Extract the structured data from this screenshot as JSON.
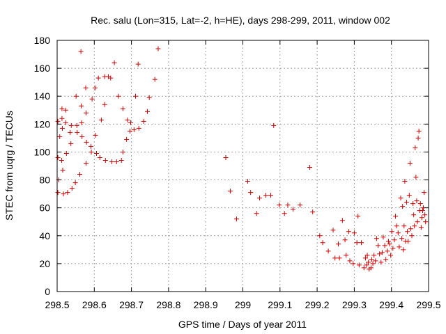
{
  "chart_data": {
    "type": "scatter",
    "title": "Rec. salu (Lon=315, Lat=-2, h=HE), days 298-299, 2011, window 002",
    "xlabel": "GPS time / Days of year 2011",
    "ylabel": "STEC from uqrg / TECUs",
    "xlim": [
      298.5,
      299.5
    ],
    "ylim": [
      0,
      180
    ],
    "xticks": [
      298.5,
      298.6,
      298.7,
      298.8,
      298.9,
      299,
      299.1,
      299.2,
      299.3,
      299.4,
      299.5
    ],
    "xtick_labels": [
      "298.5",
      "298.6",
      "298.7",
      "298.8",
      "298.9",
      "299",
      "299.1",
      "299.2",
      "299.3",
      "299.4",
      "299.5"
    ],
    "yticks": [
      0,
      20,
      40,
      60,
      80,
      100,
      120,
      140,
      160,
      180
    ],
    "ytick_labels": [
      "0",
      "20",
      "40",
      "60",
      "80",
      "100",
      "120",
      "140",
      "160",
      "180"
    ],
    "grid": true,
    "marker": "+",
    "color": "#cc0000",
    "points": [
      [
        298.502,
        122
      ],
      [
        298.502,
        96
      ],
      [
        298.502,
        71
      ],
      [
        298.504,
        80
      ],
      [
        298.507,
        111
      ],
      [
        298.512,
        94
      ],
      [
        298.513,
        131
      ],
      [
        298.513,
        124
      ],
      [
        298.514,
        117
      ],
      [
        298.515,
        87
      ],
      [
        298.517,
        70
      ],
      [
        298.523,
        130
      ],
      [
        298.523,
        121
      ],
      [
        298.525,
        99
      ],
      [
        298.528,
        71
      ],
      [
        298.535,
        114
      ],
      [
        298.537,
        106
      ],
      [
        298.538,
        119
      ],
      [
        298.54,
        74
      ],
      [
        298.549,
        78
      ],
      [
        298.551,
        140
      ],
      [
        298.553,
        119
      ],
      [
        298.554,
        114
      ],
      [
        298.561,
        84
      ],
      [
        298.564,
        172
      ],
      [
        298.565,
        133
      ],
      [
        298.566,
        121
      ],
      [
        298.567,
        111
      ],
      [
        298.577,
        146
      ],
      [
        298.578,
        92
      ],
      [
        298.578,
        128
      ],
      [
        298.579,
        107
      ],
      [
        298.591,
        104
      ],
      [
        298.592,
        100
      ],
      [
        298.594,
        138
      ],
      [
        298.602,
        146
      ],
      [
        298.603,
        112
      ],
      [
        298.606,
        99
      ],
      [
        298.611,
        153
      ],
      [
        298.615,
        96
      ],
      [
        298.619,
        123
      ],
      [
        298.628,
        134
      ],
      [
        298.628,
        154
      ],
      [
        298.63,
        94
      ],
      [
        298.638,
        154
      ],
      [
        298.644,
        153
      ],
      [
        298.647,
        93
      ],
      [
        298.654,
        164
      ],
      [
        298.66,
        93
      ],
      [
        298.665,
        140
      ],
      [
        298.673,
        94
      ],
      [
        298.677,
        100
      ],
      [
        298.677,
        131
      ],
      [
        298.687,
        109
      ],
      [
        298.689,
        123
      ],
      [
        298.696,
        115
      ],
      [
        298.698,
        121
      ],
      [
        298.707,
        116
      ],
      [
        298.711,
        140
      ],
      [
        298.718,
        163
      ],
      [
        298.72,
        117
      ],
      [
        298.733,
        122
      ],
      [
        298.743,
        129
      ],
      [
        298.748,
        139
      ],
      [
        298.763,
        152
      ],
      [
        298.772,
        174
      ],
      [
        298.954,
        96
      ],
      [
        298.966,
        72
      ],
      [
        298.983,
        52
      ],
      [
        299.013,
        79
      ],
      [
        299.021,
        71
      ],
      [
        299.037,
        56
      ],
      [
        299.045,
        67
      ],
      [
        299.062,
        69
      ],
      [
        299.075,
        69
      ],
      [
        299.083,
        119
      ],
      [
        299.098,
        62
      ],
      [
        299.112,
        56
      ],
      [
        299.121,
        62
      ],
      [
        299.135,
        59
      ],
      [
        299.154,
        62
      ],
      [
        299.18,
        89
      ],
      [
        299.188,
        57
      ],
      [
        299.207,
        40
      ],
      [
        299.215,
        35
      ],
      [
        299.23,
        29
      ],
      [
        299.243,
        44
      ],
      [
        299.248,
        24
      ],
      [
        299.257,
        34
      ],
      [
        299.26,
        24
      ],
      [
        299.268,
        51
      ],
      [
        299.275,
        37
      ],
      [
        299.278,
        26
      ],
      [
        299.285,
        43
      ],
      [
        299.288,
        22
      ],
      [
        299.297,
        20
      ],
      [
        299.3,
        42
      ],
      [
        299.307,
        35
      ],
      [
        299.31,
        54
      ],
      [
        299.313,
        19
      ],
      [
        299.319,
        35
      ],
      [
        299.326,
        17
      ],
      [
        299.33,
        24
      ],
      [
        299.333,
        19
      ],
      [
        299.335,
        26
      ],
      [
        299.338,
        21
      ],
      [
        299.34,
        16
      ],
      [
        299.345,
        17
      ],
      [
        299.347,
        23
      ],
      [
        299.35,
        20
      ],
      [
        299.353,
        26
      ],
      [
        299.357,
        22
      ],
      [
        299.36,
        38
      ],
      [
        299.364,
        33
      ],
      [
        299.368,
        27
      ],
      [
        299.372,
        21
      ],
      [
        299.375,
        28
      ],
      [
        299.378,
        39
      ],
      [
        299.382,
        33
      ],
      [
        299.385,
        23
      ],
      [
        299.389,
        29
      ],
      [
        299.392,
        36
      ],
      [
        299.395,
        34
      ],
      [
        299.398,
        26
      ],
      [
        299.401,
        43
      ],
      [
        299.404,
        31
      ],
      [
        299.408,
        37
      ],
      [
        299.411,
        54
      ],
      [
        299.414,
        47
      ],
      [
        299.418,
        42
      ],
      [
        299.421,
        32
      ],
      [
        299.425,
        67
      ],
      [
        299.428,
        38
      ],
      [
        299.43,
        61
      ],
      [
        299.432,
        30
      ],
      [
        299.434,
        47
      ],
      [
        299.436,
        79
      ],
      [
        299.438,
        36
      ],
      [
        299.441,
        64
      ],
      [
        299.443,
        43
      ],
      [
        299.445,
        36
      ],
      [
        299.448,
        69
      ],
      [
        299.45,
        92
      ],
      [
        299.452,
        45
      ],
      [
        299.455,
        40
      ],
      [
        299.458,
        63
      ],
      [
        299.46,
        55
      ],
      [
        299.462,
        47
      ],
      [
        299.464,
        103
      ],
      [
        299.466,
        82
      ],
      [
        299.468,
        65
      ],
      [
        299.47,
        50
      ],
      [
        299.472,
        110
      ],
      [
        299.474,
        115
      ],
      [
        299.476,
        58
      ],
      [
        299.478,
        63
      ],
      [
        299.48,
        46
      ],
      [
        299.482,
        53
      ],
      [
        299.484,
        58
      ],
      [
        299.486,
        60
      ],
      [
        299.488,
        71
      ],
      [
        299.49,
        55
      ],
      [
        299.492,
        50
      ]
    ]
  }
}
